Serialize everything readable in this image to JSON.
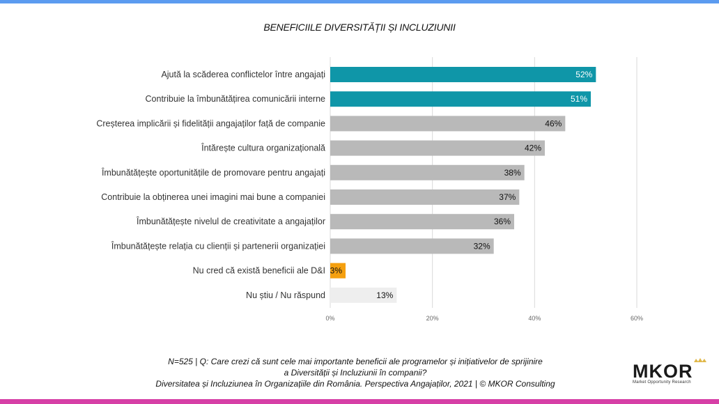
{
  "chart_data": {
    "type": "bar",
    "orientation": "horizontal",
    "title": "BENEFICIILE DIVERSITĂȚII ȘI INCLUZIUNII",
    "categories": [
      "Ajută la scăderea conflictelor între angajați",
      "Contribuie la îmbunătățirea comunicării interne",
      "Creșterea implicării și fidelității angajaților față de companie",
      "Întărește cultura organizațională",
      "Îmbunătățește oportunitățile de promovare pentru angajați",
      "Contribuie la obținerea unei imagini mai bune a companiei",
      "Îmbunătățește nivelul de creativitate a angajaților",
      "Îmbunătățește relația cu clienții și partenerii organizației",
      "Nu cred că există beneficii ale D&I",
      "Nu știu / Nu răspund"
    ],
    "values": [
      52,
      51,
      46,
      42,
      38,
      37,
      36,
      32,
      3,
      13
    ],
    "value_labels": [
      "52%",
      "51%",
      "46%",
      "42%",
      "38%",
      "37%",
      "36%",
      "32%",
      "3%",
      "13%"
    ],
    "bar_colors": [
      "#0f96a8",
      "#0f96a8",
      "#b9b9b9",
      "#b9b9b9",
      "#b9b9b9",
      "#b9b9b9",
      "#b9b9b9",
      "#b9b9b9",
      "#f5a00f",
      "#eeeeee"
    ],
    "label_colors": [
      "#ffffff",
      "#ffffff",
      "#111111",
      "#111111",
      "#111111",
      "#111111",
      "#111111",
      "#111111",
      "#111111",
      "#111111"
    ],
    "xlim": [
      0,
      60
    ],
    "xticks": [
      0,
      20,
      40,
      60
    ],
    "xtick_labels": [
      "0%",
      "20%",
      "40%",
      "60%"
    ],
    "grid": true
  },
  "footer": {
    "line1": "N=525 | Q: Care crezi că sunt cele mai importante beneficii ale programelor și inițiativelor de sprijinire",
    "line2": "a Diversității și Incluziunii în companii?",
    "line3": "Diversitatea și Incluziunea în Organizațiile din România. Perspectiva Angajaților, 2021 | © MKOR Consulting"
  },
  "logo": {
    "name": "MKOR",
    "tagline": "Market Opportunity Research"
  },
  "colors": {
    "top_bar": "#5b9bf0",
    "bottom_bar": "#d63fa6"
  }
}
